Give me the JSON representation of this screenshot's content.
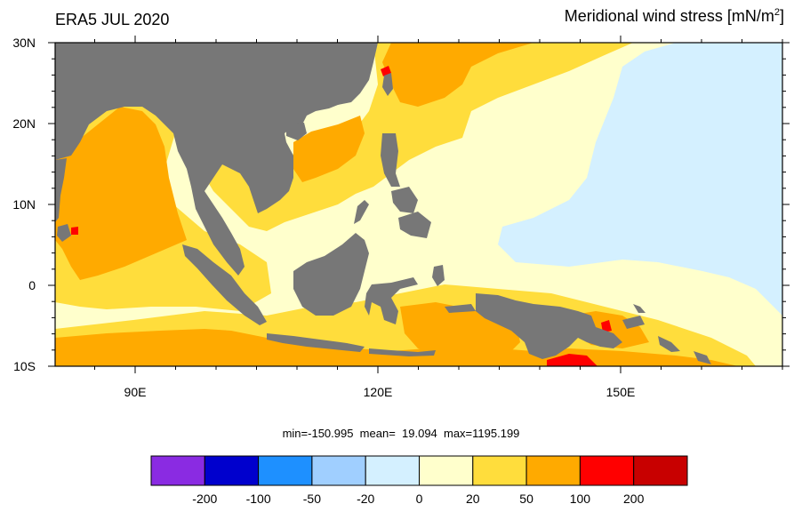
{
  "header": {
    "left_title": "ERA5 JUL 2020",
    "right_title_main": "Meridional wind stress [mN/m",
    "right_title_sup": "2",
    "right_title_end": "]"
  },
  "axes": {
    "lat_labels": [
      "30N",
      "20N",
      "10N",
      "0",
      "10S"
    ],
    "lon_labels": [
      "90E",
      "120E",
      "150E"
    ]
  },
  "stats": {
    "text": "min=-150.995  mean=  19.094  max=1195.199"
  },
  "colorbar": {
    "colors": [
      "#8a2be2",
      "#0000cd",
      "#1e90ff",
      "#a0cfff",
      "#d4f0ff",
      "#ffffcc",
      "#ffdd3c",
      "#ffaa00",
      "#ff0000",
      "#c80000"
    ],
    "labels": [
      "-200",
      "-100",
      "-50",
      "-20",
      "0",
      "20",
      "50",
      "100",
      "200"
    ]
  },
  "map_colors": {
    "land": "#777777",
    "bin_0_20": "#ffffcc",
    "bin_20_50": "#ffdd3c",
    "bin_50_100": "#ffaa00",
    "bin_100_200": "#ff0000",
    "bin_neg20_0": "#d4f0ff",
    "bin_neg50_neg20": "#a0cfff"
  }
}
